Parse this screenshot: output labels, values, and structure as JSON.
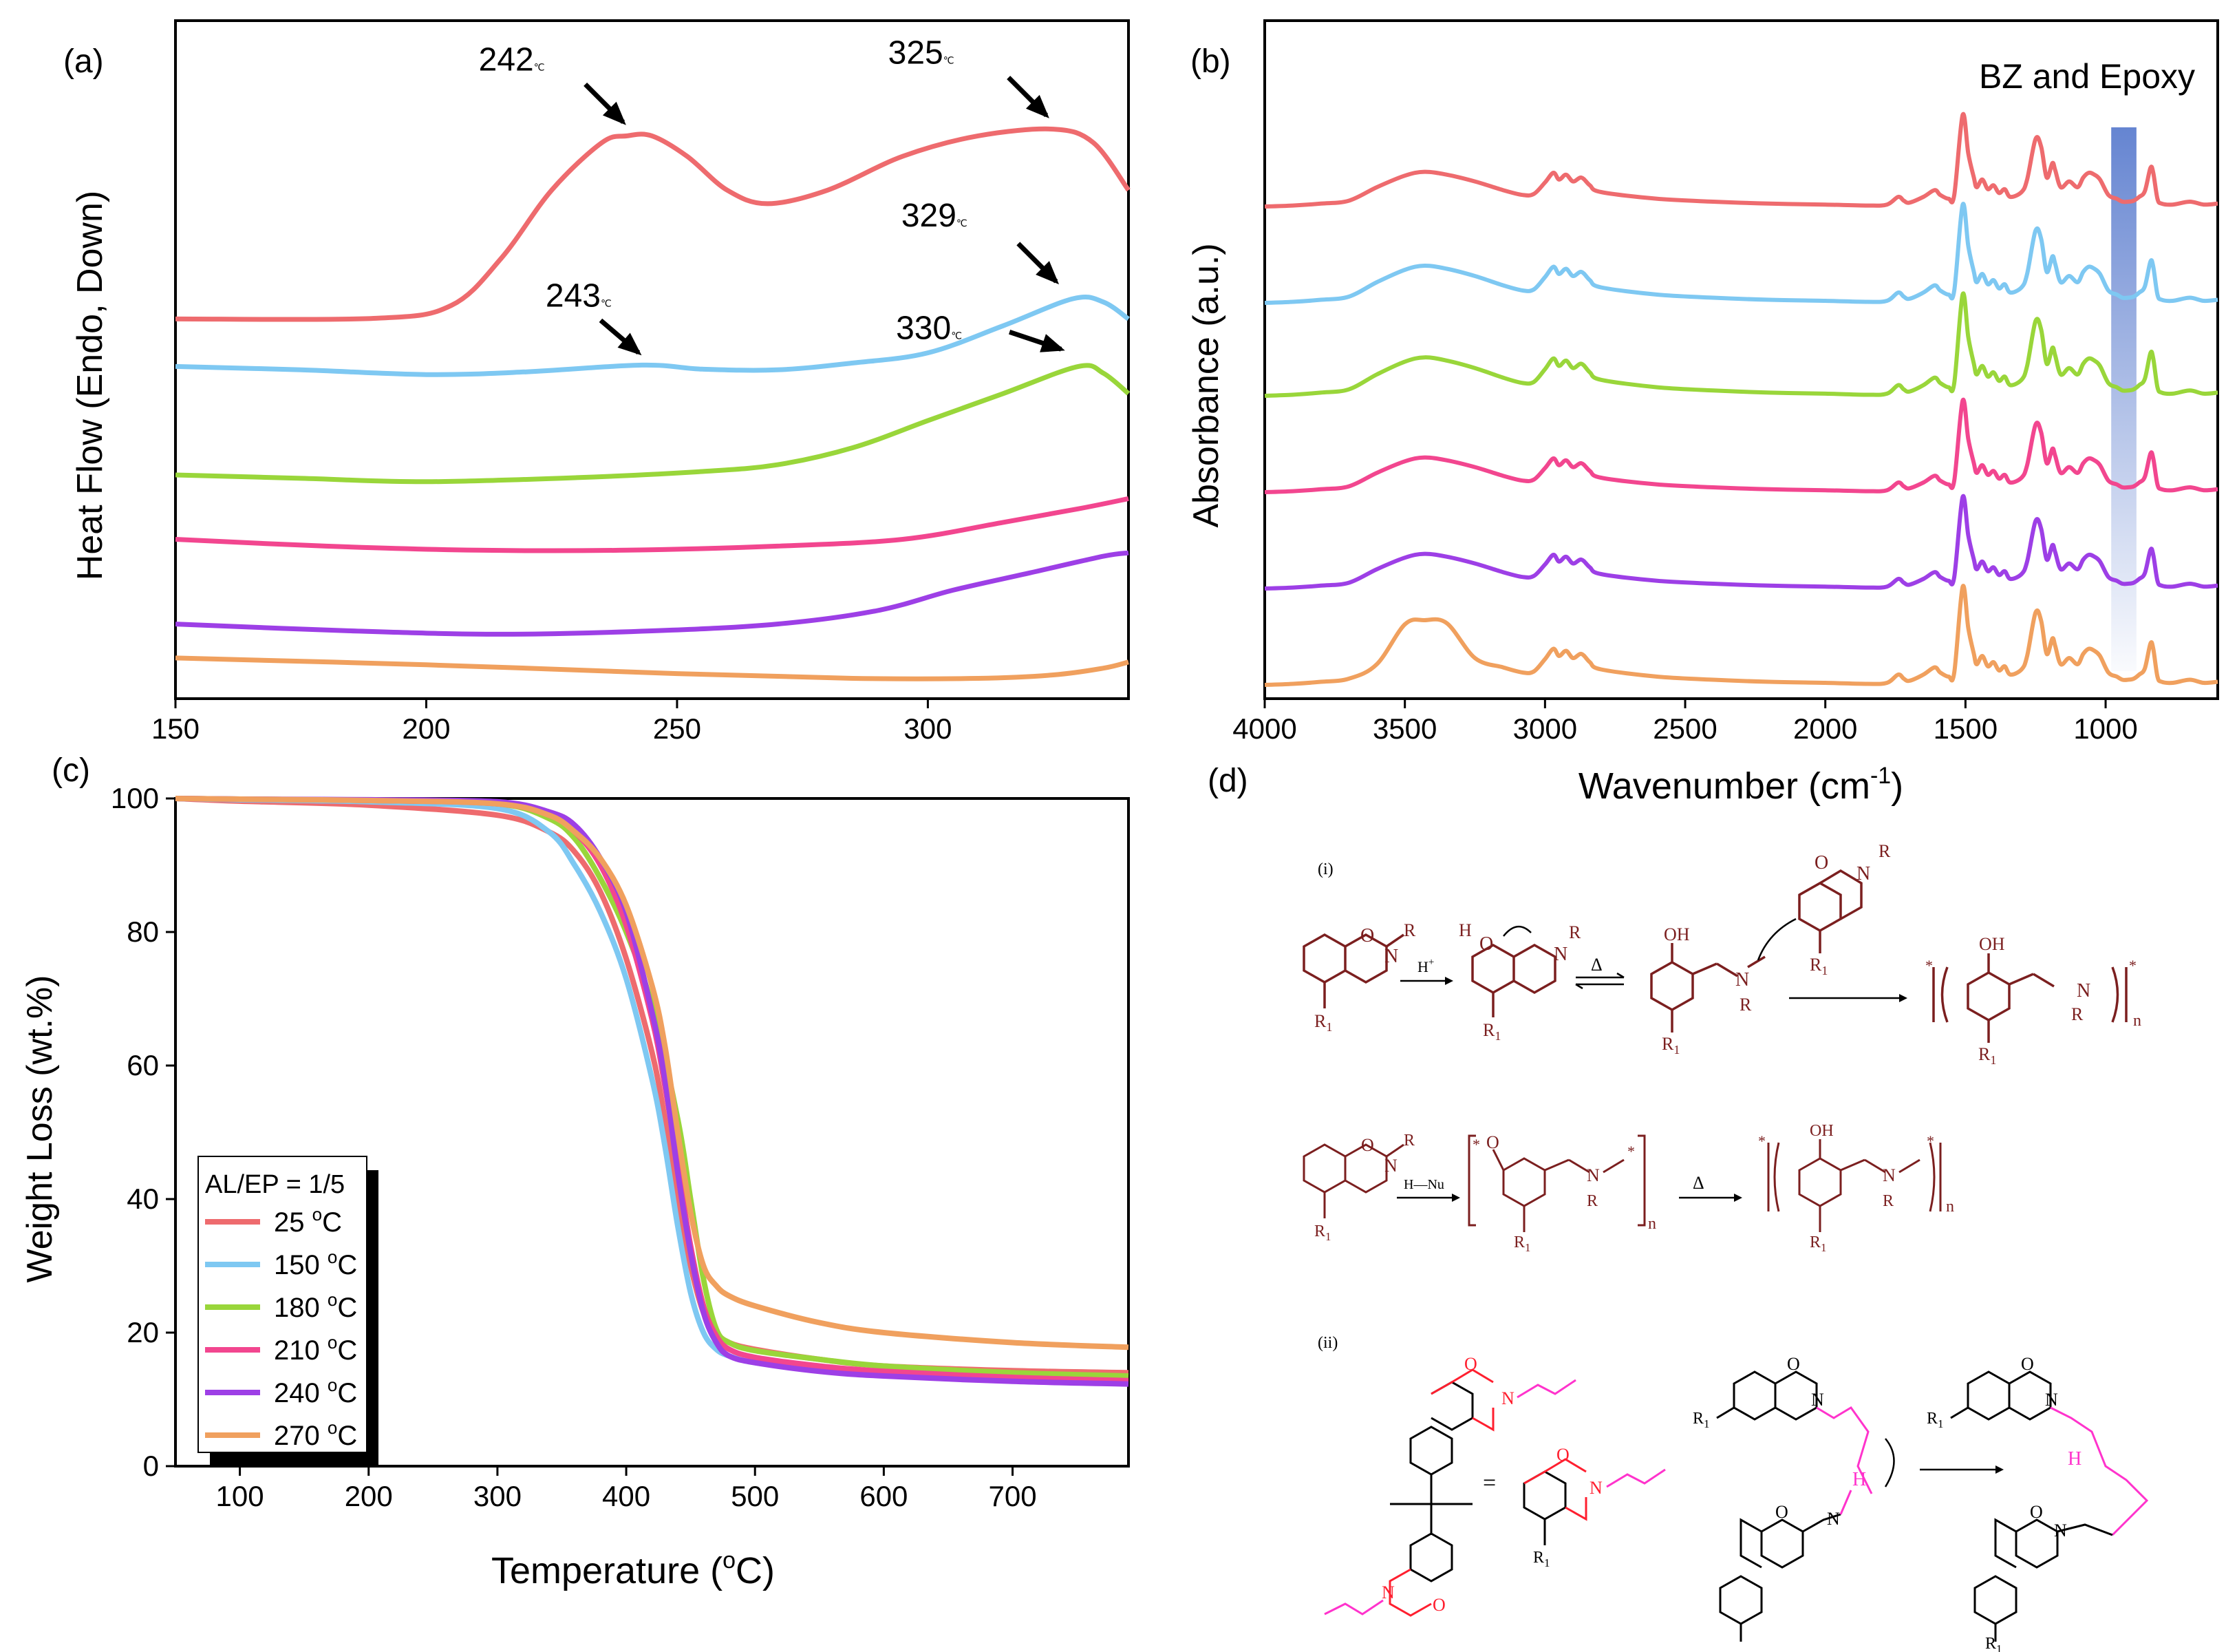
{
  "colors": {
    "c25": "#ee6b6e",
    "c150": "#7ec8f2",
    "c180": "#99d63a",
    "c210": "#f2468f",
    "c240": "#9d3fe6",
    "c270": "#f0a05e",
    "chem_dark": "#7b1f1f",
    "chem_red": "#ff1f2f",
    "chem_pink": "#ff33cc",
    "band": "#4a6fc9"
  },
  "panels": {
    "a": "(a)",
    "b": "(b)",
    "c": "(c)",
    "d": "(d)"
  },
  "chart_data": [
    {
      "id": "a",
      "type": "line",
      "title": "",
      "xlabel": "",
      "ylabel": "Heat Flow (Endo, Down)",
      "xlim": [
        150,
        340
      ],
      "xticks": [
        150,
        200,
        250,
        300
      ],
      "series": [
        {
          "name": "25 °C",
          "color": "#ee6b6e",
          "offset": 0.56,
          "x": [
            150,
            190,
            205,
            215,
            225,
            235,
            240,
            245,
            252,
            260,
            268,
            280,
            295,
            310,
            325,
            333,
            340
          ],
          "y": [
            0,
            0.001,
            0.02,
            0.09,
            0.19,
            0.26,
            0.27,
            0.27,
            0.24,
            0.19,
            0.17,
            0.19,
            0.24,
            0.27,
            0.28,
            0.26,
            0.19
          ]
        },
        {
          "name": "150 °C",
          "color": "#7ec8f2",
          "offset": 0.49,
          "x": [
            150,
            175,
            200,
            220,
            243,
            255,
            270,
            285,
            300,
            315,
            329,
            335,
            340
          ],
          "y": [
            0,
            -0.005,
            -0.012,
            -0.008,
            0.002,
            -0.004,
            -0.005,
            0.005,
            0.02,
            0.06,
            0.1,
            0.095,
            0.07
          ]
        },
        {
          "name": "180 °C",
          "color": "#99d63a",
          "offset": 0.33,
          "x": [
            150,
            175,
            200,
            230,
            255,
            270,
            285,
            300,
            315,
            330,
            335,
            340
          ],
          "y": [
            0,
            -0.005,
            -0.01,
            -0.004,
            0.005,
            0.015,
            0.04,
            0.08,
            0.12,
            0.16,
            0.15,
            0.12
          ]
        },
        {
          "name": "210 °C",
          "color": "#f2468f",
          "offset": 0.235,
          "x": [
            150,
            180,
            210,
            240,
            270,
            295,
            315,
            330,
            340
          ],
          "y": [
            0,
            -0.01,
            -0.016,
            -0.016,
            -0.01,
            0,
            0.025,
            0.045,
            0.06
          ]
        },
        {
          "name": "240 °C",
          "color": "#9d3fe6",
          "offset": 0.11,
          "x": [
            150,
            185,
            215,
            245,
            270,
            290,
            305,
            320,
            335,
            340
          ],
          "y": [
            0,
            -0.01,
            -0.015,
            -0.01,
            0,
            0.02,
            0.05,
            0.075,
            0.1,
            0.105
          ]
        },
        {
          "name": "270 °C",
          "color": "#f0a05e",
          "offset": 0.06,
          "x": [
            150,
            200,
            250,
            285,
            310,
            325,
            335,
            340
          ],
          "y": [
            0,
            -0.01,
            -0.023,
            -0.03,
            -0.03,
            -0.025,
            -0.015,
            -0.006
          ]
        }
      ],
      "annotations": [
        {
          "text": "242",
          "sub": "℃",
          "x": 242
        },
        {
          "text": "325",
          "sub": "℃",
          "x": 325
        },
        {
          "text": "243",
          "sub": "℃",
          "x": 243
        },
        {
          "text": "329",
          "sub": "℃",
          "x": 329
        },
        {
          "text": "330",
          "sub": "℃",
          "x": 330
        }
      ]
    },
    {
      "id": "b",
      "type": "line",
      "title": "BZ and Epoxy",
      "xlabel_main": "Wavenumber (cm",
      "xlabel_sup": "-1",
      "xlabel_end": ")",
      "ylabel": "Absorbance (a.u.)",
      "xlim": [
        4000,
        600
      ],
      "xticks": [
        4000,
        3500,
        3000,
        2500,
        2000,
        1500,
        1000
      ],
      "highlight_band": [
        980,
        890
      ],
      "series_names": [
        "25 °C",
        "150 °C",
        "180 °C",
        "210 °C",
        "240 °C",
        "270 °C"
      ],
      "spectrum": {
        "x": [
          4000,
          3900,
          3800,
          3700,
          3600,
          3500,
          3430,
          3350,
          3250,
          3150,
          3080,
          3040,
          3000,
          2970,
          2950,
          2925,
          2900,
          2870,
          2840,
          2800,
          2600,
          2400,
          2200,
          2000,
          1850,
          1780,
          1740,
          1720,
          1700,
          1650,
          1610,
          1590,
          1560,
          1540,
          1510,
          1490,
          1470,
          1460,
          1440,
          1420,
          1400,
          1380,
          1360,
          1340,
          1300,
          1280,
          1250,
          1230,
          1210,
          1190,
          1180,
          1160,
          1130,
          1100,
          1080,
          1060,
          1040,
          1020,
          990,
          960,
          940,
          920,
          900,
          880,
          860,
          840,
          830,
          815,
          800,
          760,
          700,
          650,
          600
        ],
        "y": [
          0,
          0.01,
          0.03,
          0.06,
          0.2,
          0.32,
          0.36,
          0.33,
          0.26,
          0.17,
          0.12,
          0.13,
          0.25,
          0.35,
          0.28,
          0.33,
          0.26,
          0.3,
          0.22,
          0.15,
          0.08,
          0.05,
          0.03,
          0.02,
          0.01,
          0.02,
          0.1,
          0.06,
          0.04,
          0.1,
          0.17,
          0.12,
          0.08,
          0.12,
          0.95,
          0.55,
          0.3,
          0.2,
          0.28,
          0.18,
          0.22,
          0.14,
          0.18,
          0.1,
          0.15,
          0.28,
          0.7,
          0.62,
          0.3,
          0.45,
          0.38,
          0.2,
          0.26,
          0.2,
          0.3,
          0.35,
          0.33,
          0.28,
          0.12,
          0.08,
          0.05,
          0.05,
          0.06,
          0.1,
          0.16,
          0.4,
          0.35,
          0.08,
          0.03,
          0.02,
          0.05,
          0.02,
          0.03
        ]
      }
    },
    {
      "id": "c",
      "type": "line",
      "xlabel_main": "Temperature (",
      "xlabel_sup": "o",
      "xlabel_end": "C)",
      "ylabel": "Weight Loss (wt.%)",
      "xlim": [
        50,
        790
      ],
      "ylim": [
        0,
        100
      ],
      "xticks": [
        100,
        200,
        300,
        400,
        500,
        600,
        700
      ],
      "yticks": [
        0,
        20,
        40,
        60,
        80,
        100
      ],
      "legend_title": "AL/EP = 1/5",
      "legend": [
        "25 ",
        "150 ",
        "180 ",
        "210 ",
        "240 ",
        "270 "
      ],
      "legend_unit_sup": "o",
      "legend_unit": "C",
      "series": [
        {
          "name": "25 °C",
          "color": "#ee6b6e",
          "x": [
            50,
            100,
            200,
            300,
            340,
            360,
            380,
            400,
            420,
            430,
            440,
            450,
            460,
            470,
            480,
            500,
            550,
            600,
            700,
            790
          ],
          "y": [
            100,
            99.6,
            99,
            97.5,
            95,
            92,
            86,
            76,
            62,
            52,
            40,
            30,
            23,
            20,
            18.5,
            17.5,
            16,
            15,
            14.3,
            14
          ]
        },
        {
          "name": "150 °C",
          "color": "#7ec8f2",
          "x": [
            50,
            100,
            200,
            300,
            340,
            360,
            380,
            400,
            420,
            430,
            440,
            450,
            460,
            470,
            480,
            500,
            550,
            600,
            700,
            790
          ],
          "y": [
            100,
            99.8,
            99.5,
            98.5,
            95,
            90,
            83,
            73,
            58,
            48,
            36,
            26,
            20,
            17.5,
            16.5,
            15.5,
            14.5,
            13.8,
            13,
            12.6
          ]
        },
        {
          "name": "180 °C",
          "color": "#99d63a",
          "x": [
            50,
            100,
            200,
            300,
            340,
            360,
            380,
            400,
            420,
            440,
            450,
            460,
            470,
            480,
            500,
            550,
            600,
            700,
            790
          ],
          "y": [
            100,
            99.9,
            99.7,
            99.2,
            97,
            94,
            88,
            80,
            69,
            52,
            40,
            28,
            20.5,
            18.5,
            17.3,
            16,
            15,
            14,
            13.5
          ]
        },
        {
          "name": "210 °C",
          "color": "#f2468f",
          "x": [
            50,
            100,
            200,
            300,
            340,
            360,
            380,
            400,
            420,
            430,
            440,
            450,
            460,
            470,
            480,
            500,
            550,
            600,
            700,
            790
          ],
          "y": [
            100,
            99.9,
            99.7,
            99.2,
            97.5,
            95,
            90,
            81,
            67,
            57,
            45,
            33,
            24,
            19.5,
            17.5,
            16.3,
            15,
            14.2,
            13.3,
            12.8
          ]
        },
        {
          "name": "240 °C",
          "color": "#9d3fe6",
          "x": [
            50,
            100,
            200,
            300,
            340,
            360,
            380,
            400,
            420,
            430,
            440,
            450,
            460,
            470,
            480,
            500,
            550,
            600,
            700,
            790
          ],
          "y": [
            100,
            99.9,
            99.8,
            99.5,
            98,
            96,
            91,
            83,
            68,
            58,
            44,
            32,
            23,
            18.5,
            16.5,
            15.5,
            14.2,
            13.5,
            12.7,
            12.3
          ]
        },
        {
          "name": "270 °C",
          "color": "#f0a05e",
          "x": [
            50,
            100,
            200,
            300,
            340,
            360,
            380,
            400,
            420,
            430,
            440,
            450,
            460,
            470,
            480,
            500,
            550,
            600,
            700,
            790
          ],
          "y": [
            100,
            99.9,
            99.7,
            99.2,
            97.5,
            95,
            91,
            84,
            72,
            63,
            50,
            38,
            30,
            27,
            25.5,
            24,
            21.5,
            20,
            18.5,
            17.8
          ]
        }
      ]
    }
  ],
  "scheme": {
    "i_label": "(i)",
    "ii_label": "(ii)",
    "H_plus": "H",
    "plus_sup": "+",
    "delta": "Δ",
    "O": "O",
    "N": "N",
    "R": "R",
    "R1": "R",
    "sub1": "1",
    "OH": "OH",
    "H": "H",
    "n": "n",
    "star": "*",
    "H_Nu": "H—Nu",
    "equals": "="
  }
}
